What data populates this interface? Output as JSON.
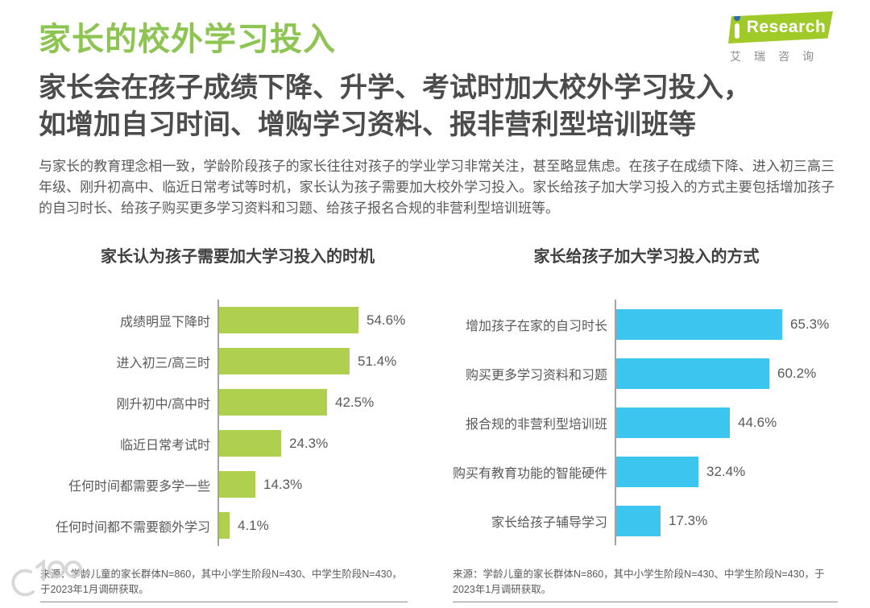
{
  "page": {
    "title": "家长的校外学习投入",
    "subtitle_lines": [
      "家长会在孩子成绩下降、升学、考试时加大校外学习投入，",
      "如增加自习时间、增购学习资料、报非营利型培训班等"
    ],
    "body": "与家长的教育理念相一致，学龄阶段孩子的家长往往对孩子的学业学习非常关注，甚至略显焦虑。在孩子在成绩下降、进入初三高三年级、刚升初高中、临近日常考试等时机，家长认为孩子需要加大校外学习投入。家长给孩子加大学习投入的方式主要包括增加孩子的自习时长、给孩子购买更多学习资料和习题、给孩子报名合规的非营利型培训班等。"
  },
  "logo": {
    "brand_en": "Research",
    "brand_cn": "艾瑞咨询",
    "banner_green": "#9fca28",
    "dot_blue": "#2f6cb3"
  },
  "colors": {
    "title_green": "#8dc452",
    "bar_green": "#afd04e",
    "bar_blue": "#3cc6ef",
    "axis_gray": "#a3a3a3",
    "subtitle_gray": "#4c4c4c",
    "text_gray": "#595959"
  },
  "chart_data": [
    {
      "type": "bar",
      "orientation": "horizontal",
      "title": "家长认为孩子需要加大学习投入的时机",
      "categories": [
        "成绩明显下降时",
        "进入初三/高三时",
        "刚升初中/高中时",
        "临近日常考试时",
        "任何时间都需要多学一些",
        "任何时间都不需要额外学习"
      ],
      "values": [
        54.6,
        51.4,
        42.5,
        24.3,
        14.3,
        4.1
      ],
      "value_labels": [
        "54.6%",
        "51.4%",
        "42.5%",
        "24.3%",
        "14.3%",
        "4.1%"
      ],
      "bar_color": "#afd04e",
      "xlim": [
        0,
        70
      ],
      "grid": false,
      "legend": false
    },
    {
      "type": "bar",
      "orientation": "horizontal",
      "title": "家长给孩子加大学习投入的方式",
      "categories": [
        "增加孩子在家的自习时长",
        "购买更多学习资料和习题",
        "报合规的非营利型培训班",
        "购买有教育功能的智能硬件",
        "家长给孩子辅导学习"
      ],
      "values": [
        65.3,
        60.2,
        44.6,
        32.4,
        17.3
      ],
      "value_labels": [
        "65.3%",
        "60.2%",
        "44.6%",
        "32.4%",
        "17.3%"
      ],
      "bar_color": "#3cc6ef",
      "xlim": [
        0,
        70
      ],
      "grid": false,
      "legend": false
    }
  ],
  "footers": {
    "left": "来源：学龄儿童的家长群体N=860，其中小学生阶段N=430、中学生阶段N=430，于2023年1月调研获取。",
    "right": "来源：学龄儿童的家长群体N=860，其中小学生阶段N=430、中学生阶段N=430，于2023年1月调研获取。"
  },
  "watermark": {
    "label": "100"
  }
}
